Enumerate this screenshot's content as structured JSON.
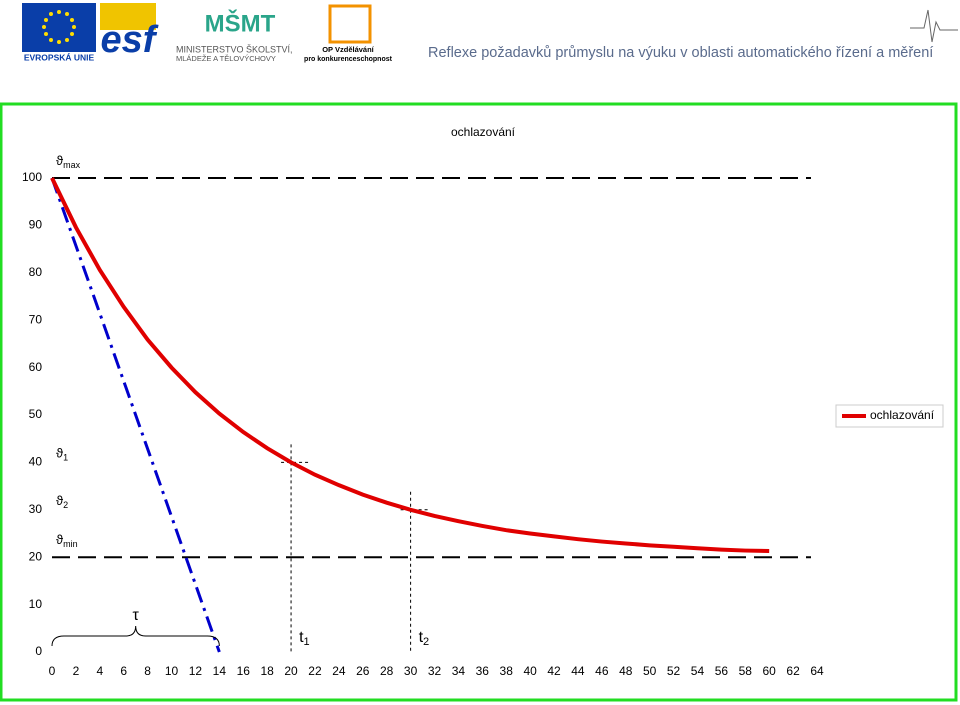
{
  "header": {
    "eu": "EVROPSKÁ UNIE",
    "esf": "esf",
    "ministry_1": "MINISTERSTVO ŠKOLSTVÍ,",
    "ministry_2": "MLÁDEŽE A TĚLOVÝCHOVY",
    "msmt": "MŠMT",
    "op_1": "OP Vzdělávání",
    "op_2": "pro konkurenceschopnost",
    "title": "Reflexe požadavků průmyslu na výuku v oblasti automatického řízení a měření"
  },
  "chart_data": {
    "type": "line",
    "title": "ochlazování",
    "x": [
      0,
      2,
      4,
      6,
      8,
      10,
      12,
      14,
      16,
      18,
      20,
      22,
      24,
      26,
      28,
      30,
      32,
      34,
      36,
      38,
      40,
      42,
      44,
      46,
      48,
      50,
      52,
      54,
      56,
      58,
      60
    ],
    "series": [
      {
        "name": "ochlazování",
        "color": "#e00000",
        "values": [
          100,
          89.6,
          80.6,
          72.8,
          65.9,
          60,
          54.8,
          50.3,
          46.4,
          43.0,
          40,
          37.4,
          35.2,
          33.2,
          31.5,
          30,
          28.7,
          27.6,
          26.6,
          25.7,
          25,
          24.4,
          23.8,
          23.3,
          22.9,
          22.5,
          22.2,
          21.9,
          21.6,
          21.4,
          21.3
        ]
      }
    ],
    "xlim": [
      0,
      64
    ],
    "xticks": [
      0,
      2,
      4,
      6,
      8,
      10,
      12,
      14,
      16,
      18,
      20,
      22,
      24,
      26,
      28,
      30,
      32,
      34,
      36,
      38,
      40,
      42,
      44,
      46,
      48,
      50,
      52,
      54,
      56,
      58,
      60,
      62,
      64
    ],
    "ylim": [
      0,
      100
    ],
    "yticks": [
      0,
      10,
      20,
      30,
      40,
      50,
      60,
      70,
      80,
      90,
      100
    ],
    "grid": false,
    "legend": "right",
    "reference_lines": [
      {
        "value": 100,
        "label": "ϑ",
        "sub": "max"
      },
      {
        "value": 20,
        "label": "ϑ",
        "sub": "min"
      }
    ],
    "tangent": {
      "x": [
        0,
        14
      ],
      "y": [
        100,
        0
      ],
      "color": "#0000cc"
    },
    "tau": {
      "label": "τ",
      "from": 0,
      "to": 14
    },
    "markers": [
      {
        "x": 20,
        "y": 40,
        "label": "t",
        "sub": "1",
        "level_label": "ϑ",
        "level_sub": "1"
      },
      {
        "x": 30,
        "y": 30,
        "label": "t",
        "sub": "2",
        "level_label": "ϑ",
        "level_sub": "2"
      }
    ]
  }
}
